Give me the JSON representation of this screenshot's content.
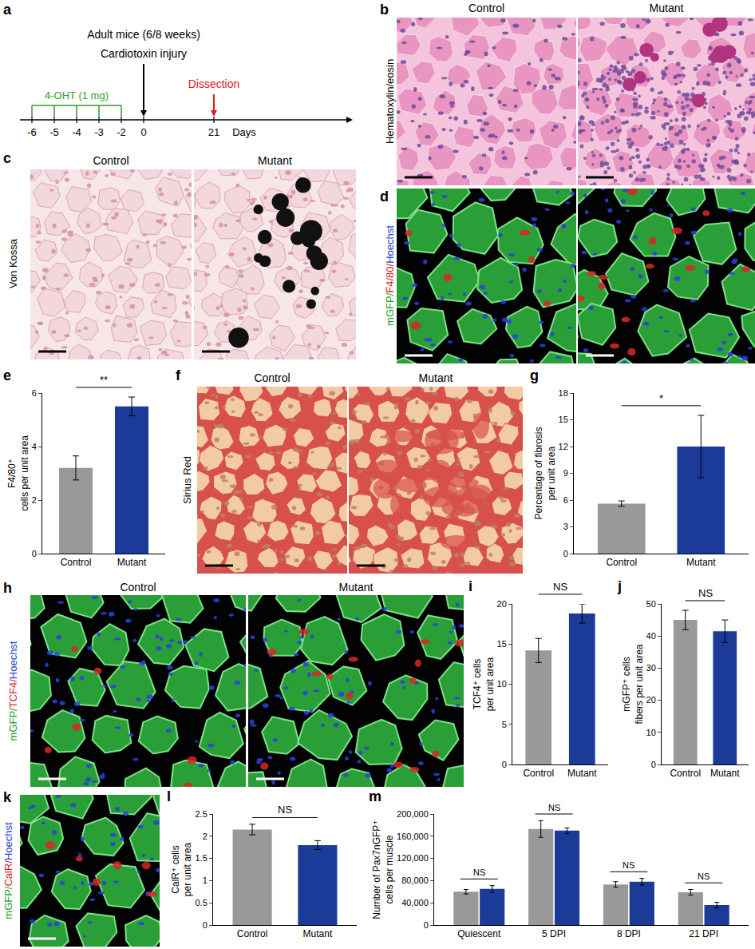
{
  "timeline": {
    "panel": "a",
    "title": "Adult mice (6/8 weeks)",
    "event": "Cardiotoxin injury",
    "treatment": "4-OHT (1 mg)",
    "endpoint": "Dissection",
    "ticks": [
      -6,
      -5,
      -4,
      -3,
      -2,
      0,
      21
    ],
    "injections": [
      -6,
      -5,
      -4,
      -3,
      -2
    ],
    "injury_day": 0,
    "dissection_day": 21,
    "unit": "Days"
  },
  "images": [
    {
      "panel": "b",
      "type": "he",
      "stain": [
        {
          "text": "Hematoxylin/eosin",
          "color": "#000000"
        }
      ],
      "columns": [
        "Control",
        "Mutant"
      ]
    },
    {
      "panel": "c",
      "type": "vonkossa",
      "stain": [
        {
          "text": "Von Kossa",
          "color": "#000000"
        }
      ],
      "columns": [
        "Control",
        "Mutant"
      ]
    },
    {
      "panel": "d",
      "type": "fluorescence",
      "stain": [
        {
          "text": "mGFP/",
          "color": "#1a9e2a"
        },
        {
          "text": "F4/80/",
          "color": "#d62020"
        },
        {
          "text": "Hoechst",
          "color": "#1f3fd0"
        }
      ],
      "columns": []
    },
    {
      "panel": "f",
      "type": "sirius",
      "stain": [
        {
          "text": "Sirius Red",
          "color": "#000000"
        }
      ],
      "columns": [
        "Control",
        "Mutant"
      ]
    },
    {
      "panel": "h",
      "type": "fluorescence",
      "stain": [
        {
          "text": "mGFP/",
          "color": "#1a9e2a"
        },
        {
          "text": "TCF4/",
          "color": "#d62020"
        },
        {
          "text": "Hoechst",
          "color": "#1f3fd0"
        }
      ],
      "columns": [
        "Control",
        "Mutant"
      ]
    },
    {
      "panel": "k",
      "type": "fluorescence",
      "stain": [
        {
          "text": "mGFP/",
          "color": "#1a9e2a"
        },
        {
          "text": "CalR/",
          "color": "#d62020"
        },
        {
          "text": "Hoechst",
          "color": "#1f3fd0"
        }
      ],
      "columns": []
    }
  ],
  "chart_data": [
    {
      "panel": "e",
      "type": "bar",
      "categories": [
        "Control",
        "Mutant"
      ],
      "values": [
        3.2,
        5.5
      ],
      "errors": [
        0.45,
        0.35
      ],
      "colors": [
        "#999999",
        "#1c3a97"
      ],
      "ylabel": [
        "F4/80⁺",
        "cells per unit area"
      ],
      "ylim": [
        0,
        6
      ],
      "yticks": [
        0,
        2,
        4,
        6
      ],
      "grid": false,
      "significance": "**"
    },
    {
      "panel": "g",
      "type": "bar",
      "categories": [
        "Control",
        "Mutant"
      ],
      "values": [
        5.6,
        12
      ],
      "errors": [
        0.3,
        3.5
      ],
      "colors": [
        "#999999",
        "#1c3a97"
      ],
      "ylabel": [
        "Percentage of fibrosis",
        "per unit area"
      ],
      "ylim": [
        0,
        18
      ],
      "yticks": [
        0,
        3,
        6,
        9,
        12,
        15,
        18
      ],
      "grid": false,
      "significance": "*"
    },
    {
      "panel": "i",
      "type": "bar",
      "categories": [
        "Control",
        "Mutant"
      ],
      "values": [
        14.2,
        18.8
      ],
      "errors": [
        1.5,
        1.2
      ],
      "colors": [
        "#999999",
        "#1c3a97"
      ],
      "ylabel": [
        "TCF4⁺ cells",
        "per unit area"
      ],
      "ylim": [
        0,
        20
      ],
      "yticks": [
        0,
        5,
        10,
        15,
        20
      ],
      "grid": false,
      "significance": "NS"
    },
    {
      "panel": "j",
      "type": "bar",
      "categories": [
        "Control",
        "Mutant"
      ],
      "values": [
        45,
        41.5
      ],
      "errors": [
        3,
        3.5
      ],
      "colors": [
        "#999999",
        "#1c3a97"
      ],
      "ylabel": [
        "mGFP⁺ cells",
        "fibers per unit area"
      ],
      "ylim": [
        0,
        50
      ],
      "yticks": [
        0,
        10,
        20,
        30,
        40,
        50
      ],
      "grid": false,
      "significance": "NS"
    },
    {
      "panel": "l",
      "type": "bar",
      "categories": [
        "Control",
        "Mutant"
      ],
      "values": [
        2.15,
        1.8
      ],
      "errors": [
        0.12,
        0.1
      ],
      "colors": [
        "#999999",
        "#1c3a97"
      ],
      "ylabel": [
        "CalR⁺ cells",
        "per unit area"
      ],
      "ylim": [
        0,
        2.5
      ],
      "yticks": [
        0,
        0.5,
        1,
        1.5,
        2,
        2.5
      ],
      "grid": false,
      "significance": "NS"
    },
    {
      "panel": "m",
      "type": "bar",
      "categories": [
        "Quiescent",
        "5 DPI",
        "8 DPI",
        "21 DPI"
      ],
      "series": [
        {
          "color": "#999999",
          "values": [
            60000,
            173000,
            73000,
            59000
          ],
          "errors": [
            4000,
            15000,
            5000,
            5000
          ]
        },
        {
          "color": "#1c3a97",
          "values": [
            65000,
            170000,
            78000,
            36000
          ],
          "errors": [
            6000,
            5000,
            6000,
            5000
          ]
        }
      ],
      "ylabel": [
        "Number of Pax7nGFP⁺",
        "cells per muscle"
      ],
      "ylim": [
        0,
        200000
      ],
      "yticks": [
        0,
        {
          "value": 40000,
          "label": "40,000"
        },
        {
          "value": 80000,
          "label": "80,000"
        },
        {
          "value": 120000,
          "label": "120,000"
        },
        {
          "value": 160000,
          "label": "160,000"
        },
        {
          "value": 200000,
          "label": "200,000"
        }
      ],
      "grid": false,
      "significance": [
        "NS",
        "NS",
        "NS",
        "NS"
      ]
    }
  ]
}
